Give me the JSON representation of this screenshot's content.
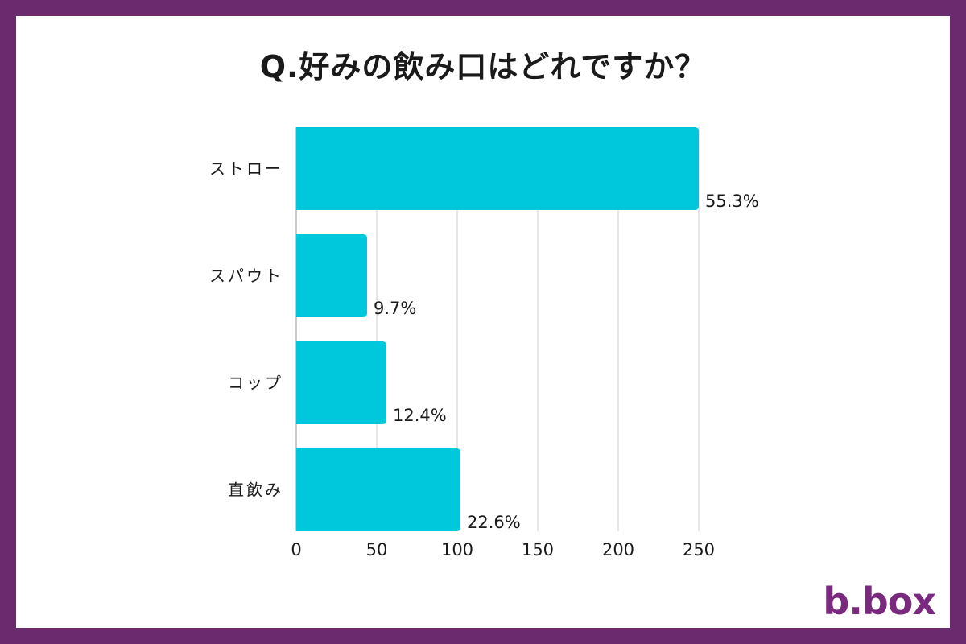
{
  "chart_data": {
    "type": "bar",
    "orientation": "horizontal",
    "title": "Q.好みの飲み口はどれですか？",
    "categories": [
      "ストロー",
      "スパウト",
      "コップ",
      "直飲み"
    ],
    "values": [
      250,
      44,
      56,
      102
    ],
    "value_labels": [
      "55.3%",
      "9.7%",
      "12.4%",
      "22.6%"
    ],
    "xlim": [
      0,
      250
    ],
    "xticks": [
      0,
      50,
      100,
      150,
      200,
      250
    ],
    "xtick_labels": [
      "0",
      "50",
      "100",
      "150",
      "200",
      "250"
    ],
    "grid": "vertical",
    "legend": "none",
    "colors": {
      "bar": "#00c8dc",
      "frame": "#6b2a6e",
      "grid": "#cccccc",
      "text": "#1a1a1a"
    }
  },
  "brand": {
    "logo_text": "b.box",
    "color": "#7a2a7e"
  }
}
